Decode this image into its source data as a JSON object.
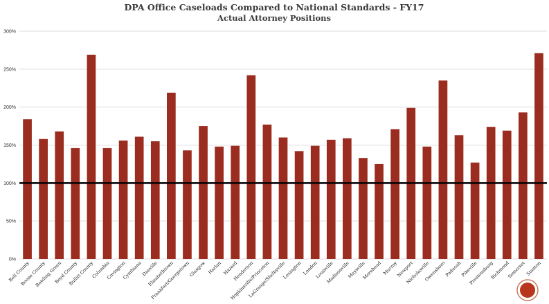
{
  "chart_data": {
    "type": "bar",
    "title": "DPA Office Caseloads Compared to National Standards - FY17",
    "subtitle": "Actual Attorney Positions",
    "ylim": [
      0,
      300
    ],
    "yticks": [
      "0%",
      "50%",
      "100%",
      "150%",
      "200%",
      "250%",
      "300%"
    ],
    "ytick_values": [
      0,
      50,
      100,
      150,
      200,
      250,
      300
    ],
    "reference_line": 100,
    "grid": true,
    "bar_color": "#9b2d20",
    "categories": [
      "Bell County",
      "Boone County",
      "Bowling Green",
      "Boyd County",
      "Bullitt County",
      "Columbia",
      "Covington",
      "Cynthiana",
      "Danville",
      "Elizabethtown",
      "Frankfort/Georgetown",
      "Glasgow",
      "Harlan",
      "Hazard",
      "Henderson",
      "Hopkinsville/Princeton",
      "LaGrange/Shelbyville",
      "Lexington",
      "London",
      "Louisville",
      "Madisonville",
      "Maysville",
      "Morehead",
      "Murray",
      "Newport",
      "Nicholasville",
      "Owensboro",
      "Paducah",
      "Pikeville",
      "Prestonsburg",
      "Richmond",
      "Somerset",
      "Stanton"
    ],
    "values": [
      184,
      158,
      168,
      146,
      269,
      146,
      156,
      161,
      155,
      219,
      143,
      175,
      148,
      149,
      242,
      177,
      160,
      142,
      149,
      157,
      159,
      133,
      125,
      171,
      199,
      148,
      235,
      163,
      127,
      174,
      169,
      193,
      271
    ]
  }
}
